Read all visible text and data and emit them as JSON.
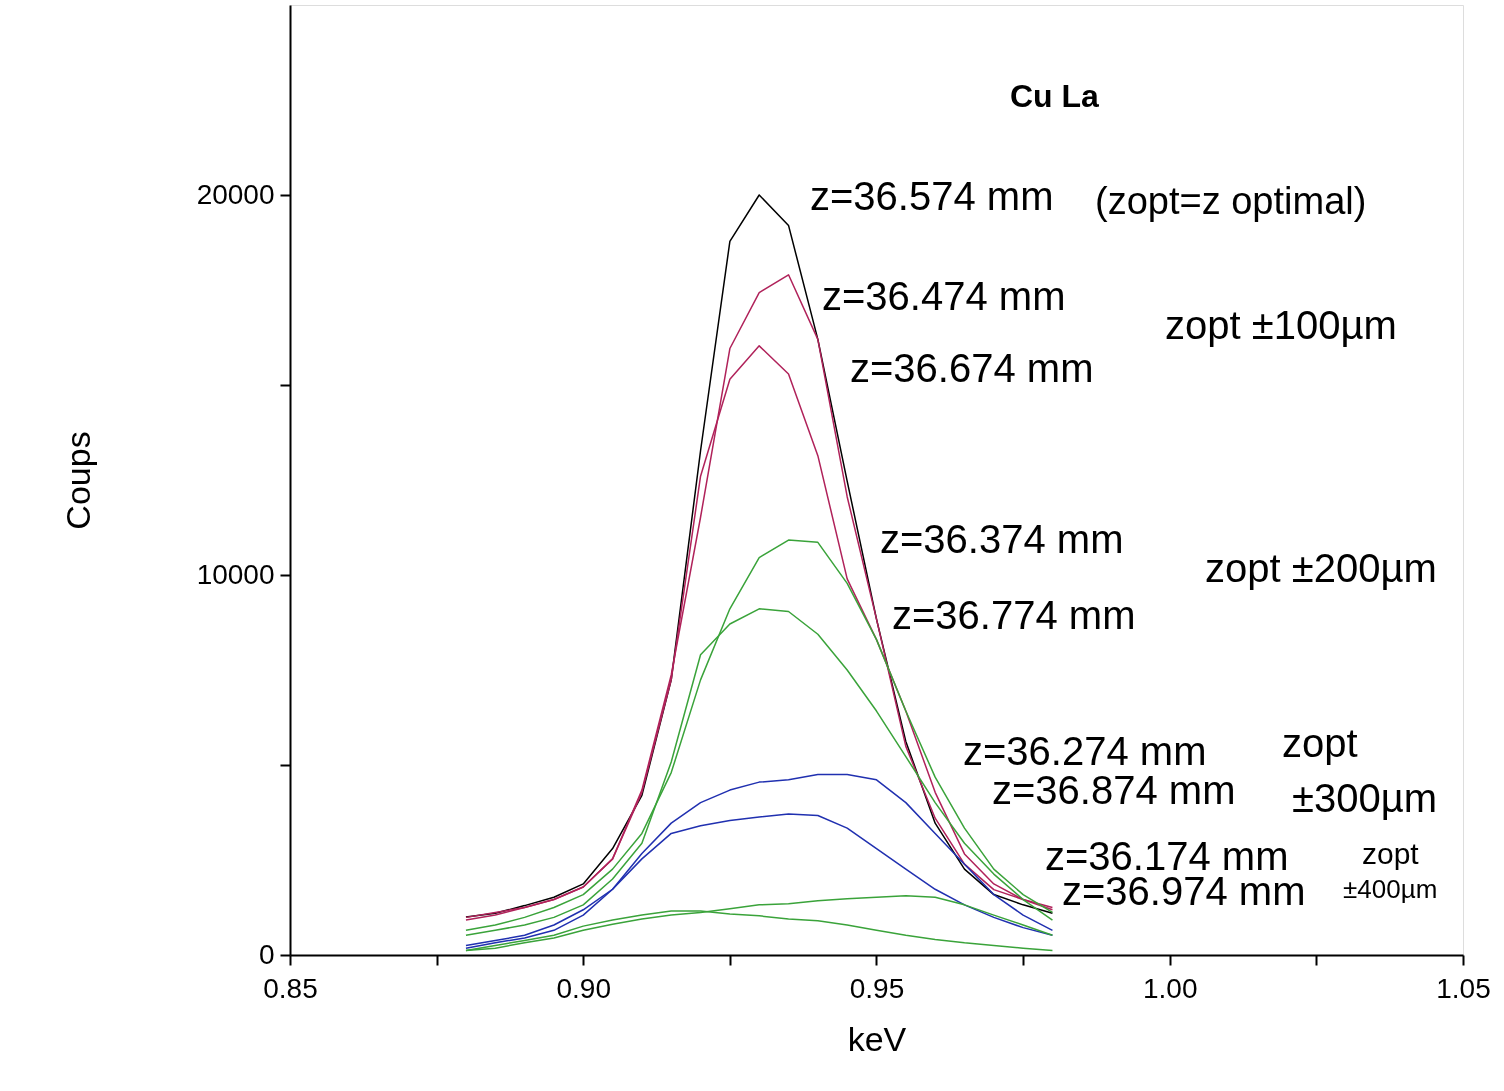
{
  "chart_data": {
    "type": "line",
    "title": "Cu La",
    "xlabel": "keV",
    "ylabel": "Coups",
    "x": [
      0.88,
      0.885,
      0.89,
      0.895,
      0.9,
      0.905,
      0.91,
      0.915,
      0.92,
      0.925,
      0.93,
      0.935,
      0.94,
      0.945,
      0.95,
      0.955,
      0.96,
      0.965,
      0.97,
      0.975,
      0.98
    ],
    "series": [
      {
        "color": "#000000",
        "values": [
          1000,
          1100,
          1300,
          1520,
          1870,
          2800,
          4200,
          7240,
          13270,
          18780,
          20000,
          19200,
          16200,
          12470,
          8840,
          5620,
          3470,
          2260,
          1590,
          1320,
          1100
        ]
      },
      {
        "color": "#b0225a",
        "values": [
          920,
          1050,
          1250,
          1460,
          1790,
          2530,
          4340,
          7370,
          11520,
          15960,
          17430,
          17900,
          16200,
          12060,
          8840,
          5490,
          3600,
          2390,
          1720,
          1460,
          1190
        ]
      },
      {
        "color": "#b0225a",
        "values": [
          990,
          1120,
          1250,
          1460,
          1790,
          2530,
          4280,
          7240,
          12600,
          15150,
          16030,
          15290,
          13140,
          9900,
          8300,
          6420,
          4280,
          2660,
          1870,
          1460,
          1250
        ]
      },
      {
        "color": "#3aa33a",
        "values": [
          650,
          790,
          990,
          1250,
          1590,
          2260,
          3200,
          4800,
          7240,
          9110,
          10460,
          10920,
          10860,
          9780,
          8300,
          6420,
          4680,
          3340,
          2260,
          1590,
          1120
        ]
      },
      {
        "color": "#3aa33a",
        "values": [
          520,
          650,
          790,
          990,
          1320,
          2000,
          2940,
          5080,
          7900,
          8710,
          9110,
          9040,
          8440,
          7500,
          6420,
          5220,
          4010,
          2940,
          2130,
          1460,
          920
        ]
      },
      {
        "color": "#2030b0",
        "values": [
          250,
          380,
          520,
          790,
          1190,
          1730,
          2670,
          3470,
          4010,
          4340,
          4550,
          4610,
          4750,
          4750,
          4610,
          4010,
          3200,
          2390,
          1590,
          1050,
          650
        ]
      },
      {
        "color": "#2030b0",
        "values": [
          180,
          320,
          450,
          650,
          1050,
          1730,
          2530,
          3200,
          3400,
          3540,
          3630,
          3710,
          3670,
          3340,
          2800,
          2260,
          1730,
          1320,
          990,
          720,
          520
        ]
      },
      {
        "color": "#3aa33a",
        "values": [
          120,
          180,
          320,
          450,
          650,
          810,
          950,
          1050,
          1120,
          1220,
          1320,
          1350,
          1430,
          1480,
          1520,
          1560,
          1520,
          1320,
          1050,
          790,
          520
        ]
      },
      {
        "color": "#3aa33a",
        "values": [
          120,
          250,
          380,
          520,
          760,
          920,
          1050,
          1160,
          1160,
          1080,
          1030,
          950,
          900,
          790,
          650,
          520,
          410,
          320,
          250,
          180,
          120
        ]
      }
    ],
    "xlim": [
      0.85,
      1.05
    ],
    "xticks": [
      {
        "value": 0.85,
        "label": "0.85"
      },
      {
        "value": 0.875,
        "label": null
      },
      {
        "value": 0.9,
        "label": "0.90"
      },
      {
        "value": 0.925,
        "label": null
      },
      {
        "value": 0.95,
        "label": "0.95"
      },
      {
        "value": 0.975,
        "label": null
      },
      {
        "value": 1.0,
        "label": "1.00"
      },
      {
        "value": 1.025,
        "label": null
      },
      {
        "value": 1.05,
        "label": "1.05"
      }
    ],
    "ylim": [
      0,
      25000
    ],
    "yticks": [
      {
        "value": 0,
        "label": "0"
      },
      {
        "value": 5000,
        "label": null
      },
      {
        "value": 10000,
        "label": "10000"
      },
      {
        "value": 15000,
        "label": null
      },
      {
        "value": 20000,
        "label": "20000"
      }
    ],
    "grid": false,
    "marker": "none",
    "line_style": "solid",
    "annotations": [
      "z=36.574 mm",
      "(zopt=z optimal)",
      "z=36.474 mm",
      "z=36.674 mm",
      "zopt ±100µm",
      "z=36.374 mm",
      "z=36.774 mm",
      "zopt ±200µm",
      "z=36.274 mm",
      "z=36.874 mm",
      "zopt",
      "±300µm",
      "z=36.174 mm",
      "z=36.974 mm",
      "zopt",
      "±400µm"
    ]
  }
}
